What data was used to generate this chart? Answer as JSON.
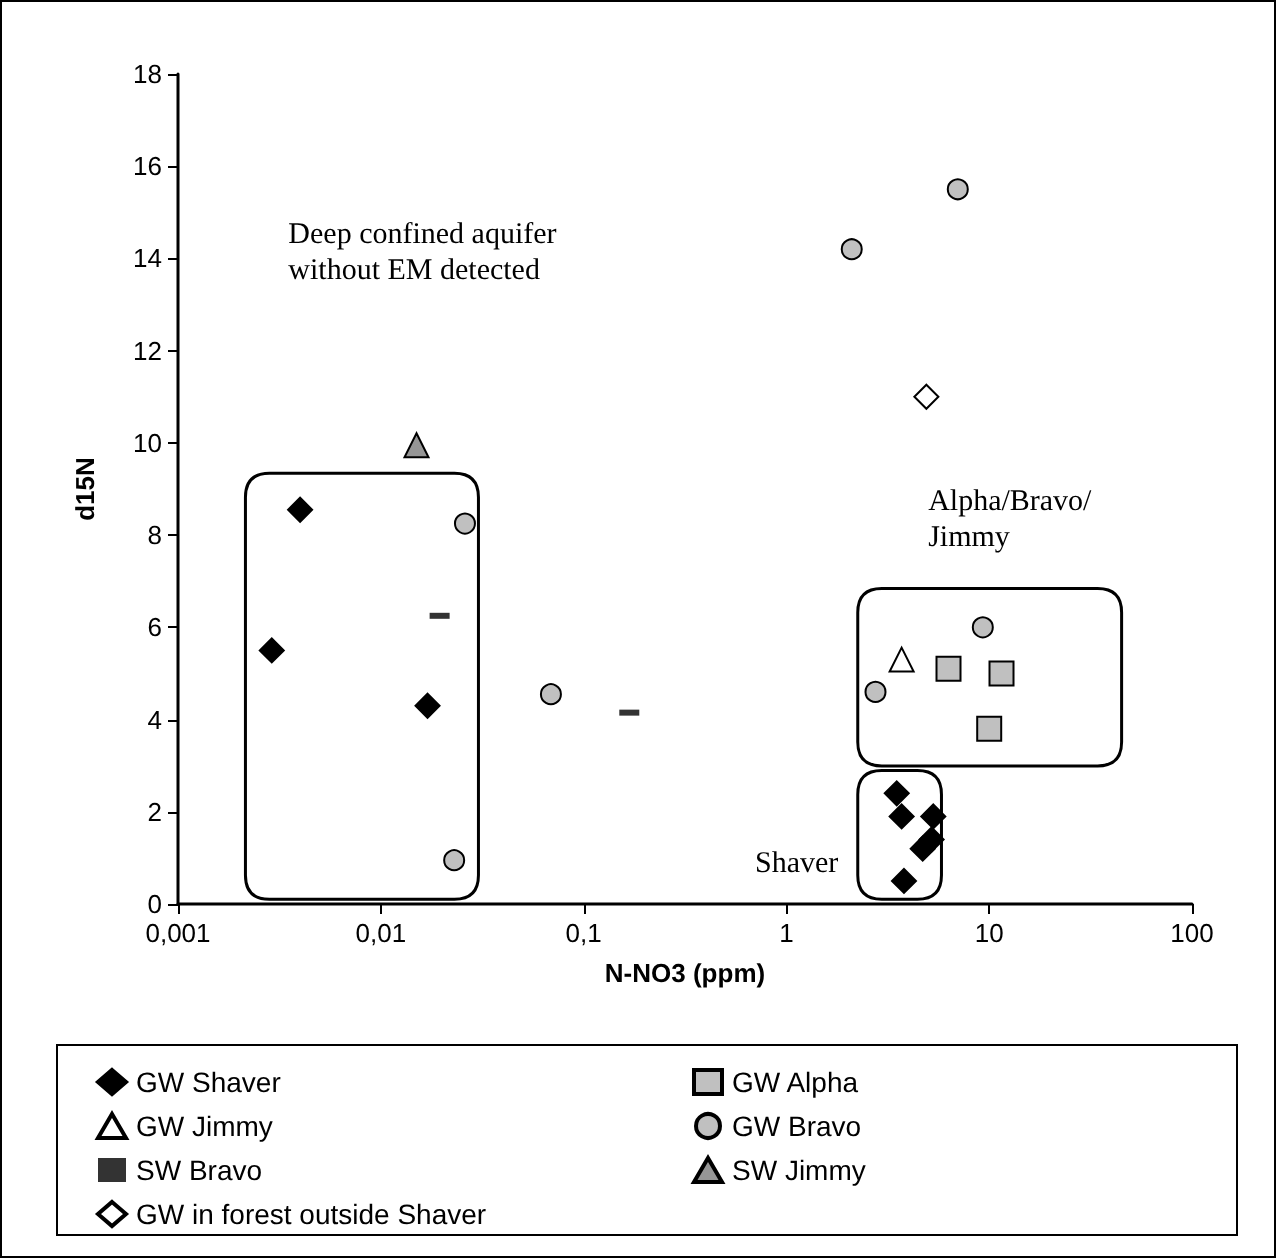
{
  "chart_data": {
    "type": "scatter",
    "xlabel": "N-NO3 (ppm)",
    "ylabel": "d15N",
    "log": "x",
    "grid": false,
    "legend": "bottom",
    "xlim": [
      0.001,
      100
    ],
    "xticks": [
      {
        "value": 0.001,
        "label": "0,001"
      },
      {
        "value": 0.01,
        "label": "0,01"
      },
      {
        "value": 0.1,
        "label": "0,1"
      },
      1,
      10,
      100
    ],
    "ylim": [
      0,
      18
    ],
    "yticks": [
      0,
      2,
      4,
      6,
      8,
      10,
      12,
      14,
      16,
      18
    ],
    "annotations": [
      "Deep confined aquifer without EM detected",
      "Alpha/Bravo/ Jimmy",
      "Shaver"
    ],
    "series": [
      {
        "name": "GW Shaver",
        "marker": "diamond",
        "color": "#000000",
        "x": [
          0.0029,
          0.004,
          0.017,
          3.5,
          3.7,
          5.3,
          5.2,
          4.7,
          3.8
        ],
        "values": [
          5.5,
          8.55,
          4.3,
          2.4,
          1.9,
          1.9,
          1.4,
          1.2,
          0.5
        ]
      },
      {
        "name": "GW Alpha",
        "marker": "square",
        "color": "#c0c0c0",
        "x": [
          6.3,
          11.5,
          10
        ],
        "values": [
          5.1,
          5.0,
          3.8
        ]
      },
      {
        "name": "GW Jimmy",
        "marker": "triangle",
        "color": "#ffffff",
        "x": [
          3.7
        ],
        "values": [
          5.3
        ]
      },
      {
        "name": "GW Bravo",
        "marker": "circle",
        "color": "#c0c0c0",
        "x": [
          7,
          2.1,
          9.3,
          2.75,
          0.026,
          0.023,
          0.069
        ],
        "values": [
          15.5,
          14.2,
          6.0,
          4.6,
          8.25,
          0.95,
          4.55
        ]
      },
      {
        "name": "SW Bravo",
        "color": "#333333",
        "x": [
          0.0195,
          0.168
        ],
        "values": [
          6.25,
          4.15
        ]
      },
      {
        "name": "SW Jimmy",
        "marker": "triangle",
        "color": "#969696",
        "x": [
          0.015
        ],
        "values": [
          9.95
        ]
      },
      {
        "name": "GW in forest outside Shaver",
        "marker": "diamond",
        "color": "#ffffff",
        "x": [
          4.9
        ],
        "values": [
          11.0
        ]
      }
    ]
  }
}
